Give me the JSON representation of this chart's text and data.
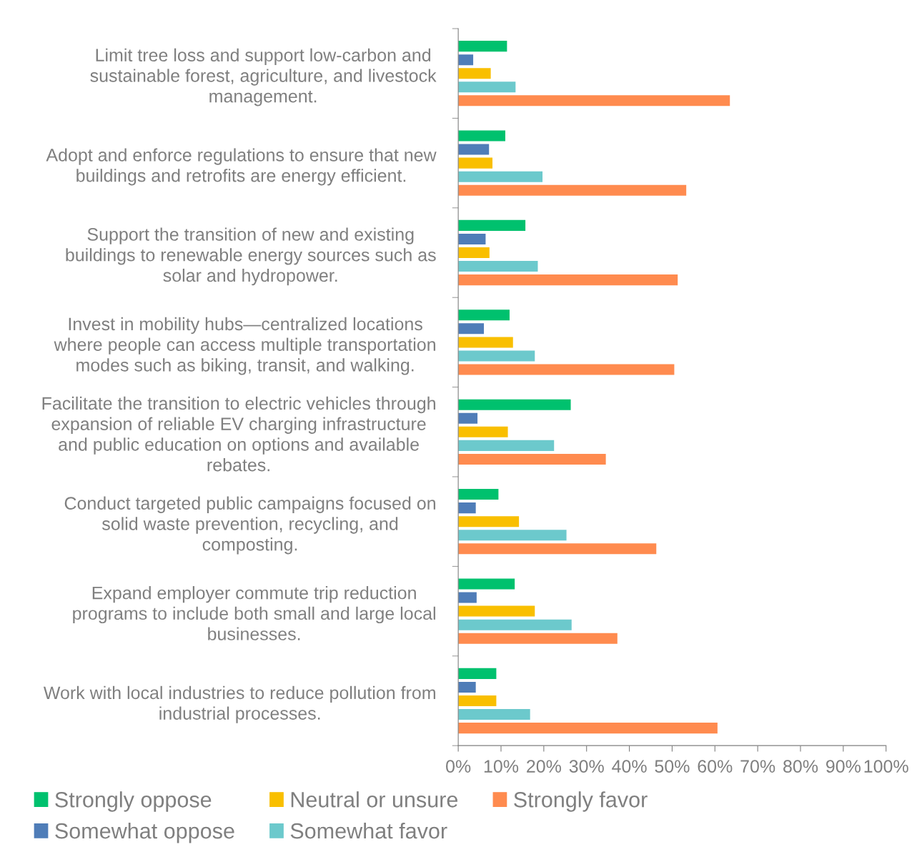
{
  "chart_data": {
    "type": "bar",
    "orientation": "horizontal",
    "categories": [
      "Limit tree loss and support low-carbon and\nsustainable forest, agriculture, and livestock\nmanagement.",
      "Adopt and enforce regulations to ensure that new\nbuildings and retrofits are energy efficient.",
      "Support the transition of new and existing\nbuildings to renewable energy sources such as\nsolar and hydropower.",
      "Invest in mobility hubs—centralized locations\nwhere people can access multiple transportation\nmodes such as biking, transit, and walking.",
      "Facilitate the transition to electric vehicles through\nexpansion of reliable EV charging infrastructure\nand public education on options and available\nrebates.",
      "Conduct targeted public campaigns focused on\nsolid waste prevention, recycling, and\ncomposting.",
      "Expand employer commute trip reduction\nprograms to include both small and large local\nbusinesses.",
      "Work with local industries to reduce pollution from\nindustrial processes."
    ],
    "series": [
      {
        "name": "Strongly oppose",
        "color": "#00c16e",
        "values": [
          11.4,
          11.0,
          15.7,
          12.0,
          26.3,
          9.4,
          13.2,
          8.9
        ]
      },
      {
        "name": "Somewhat oppose",
        "color": "#4f7db8",
        "values": [
          3.5,
          7.2,
          6.4,
          6.0,
          4.5,
          4.1,
          4.3,
          4.1
        ]
      },
      {
        "name": "Neutral or unsure",
        "color": "#f9bf00",
        "values": [
          7.6,
          8.0,
          7.3,
          12.8,
          11.6,
          14.2,
          17.9,
          8.9
        ]
      },
      {
        "name": "Somewhat favor",
        "color": "#6cc9cc",
        "values": [
          13.4,
          19.7,
          18.6,
          17.9,
          22.4,
          25.3,
          26.5,
          16.8
        ]
      },
      {
        "name": "Strongly favor",
        "color": "#ff8b4f",
        "values": [
          63.5,
          53.3,
          51.3,
          50.5,
          34.5,
          46.3,
          37.2,
          60.6
        ]
      }
    ],
    "xlim": [
      0,
      100
    ],
    "xticks": [
      {
        "value": 0,
        "label": "0%"
      },
      {
        "value": 10,
        "label": "10%"
      },
      {
        "value": 20,
        "label": "20%"
      },
      {
        "value": 30,
        "label": "30%"
      },
      {
        "value": 40,
        "label": "40%"
      },
      {
        "value": 50,
        "label": "50%"
      },
      {
        "value": 60,
        "label": "60%"
      },
      {
        "value": 70,
        "label": "70%"
      },
      {
        "value": 80,
        "label": "80%"
      },
      {
        "value": 90,
        "label": "90%"
      },
      {
        "value": 100,
        "label": "100%"
      }
    ],
    "grid": false,
    "legend": "bottom"
  }
}
